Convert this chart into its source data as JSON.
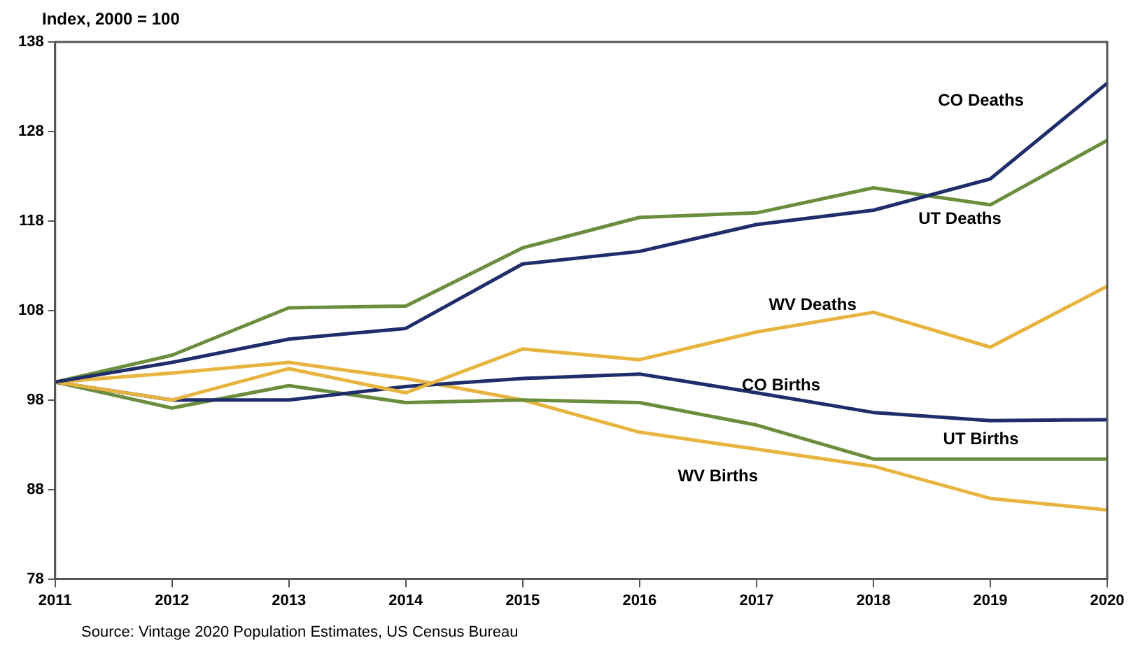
{
  "chart_data": {
    "type": "line",
    "ylabel": "Index, 2000 = 100",
    "x": [
      2011,
      2012,
      2013,
      2014,
      2015,
      2016,
      2017,
      2018,
      2019,
      2020
    ],
    "xlim": [
      2011,
      2020
    ],
    "xticks": [
      2011,
      2012,
      2013,
      2014,
      2015,
      2016,
      2017,
      2018,
      2019,
      2020
    ],
    "ylim": [
      78,
      138
    ],
    "yticks": [
      78,
      88,
      98,
      108,
      118,
      128,
      138
    ],
    "grid": false,
    "legend": false,
    "marker": "none",
    "line_style": "solid",
    "annotations": [
      "Source: Vintage 2020 Population Estimates, US Census Bureau"
    ],
    "series": [
      {
        "name": "CO Deaths",
        "color": "#1f2d6b",
        "values": [
          100,
          102.2,
          104.8,
          106,
          113.2,
          114.6,
          117.6,
          119.2,
          122.7,
          133.4
        ]
      },
      {
        "name": "UT Deaths",
        "color": "#6a8d3e",
        "values": [
          100,
          103,
          108.3,
          108.5,
          115,
          118.4,
          118.9,
          121.7,
          119.8,
          127
        ]
      },
      {
        "name": "WV Deaths",
        "color": "#e8b440",
        "values": [
          100,
          98,
          101.5,
          98.8,
          103.7,
          102.5,
          105.6,
          107.8,
          103.9,
          110.7
        ]
      },
      {
        "name": "CO Births",
        "color": "#1f2d6b",
        "values": [
          100,
          98,
          98,
          99.5,
          100.4,
          100.9,
          98.8,
          96.6,
          95.7,
          95.8
        ]
      },
      {
        "name": "UT Births",
        "color": "#6a8d3e",
        "values": [
          100,
          97.1,
          99.6,
          97.7,
          98,
          97.7,
          95.2,
          91.4,
          91.4,
          91.4
        ]
      },
      {
        "name": "WV Births",
        "color": "#e8b440",
        "values": [
          100,
          101,
          102.2,
          100.4,
          98,
          94.4,
          92.5,
          90.6,
          87,
          85.7
        ]
      }
    ]
  }
}
